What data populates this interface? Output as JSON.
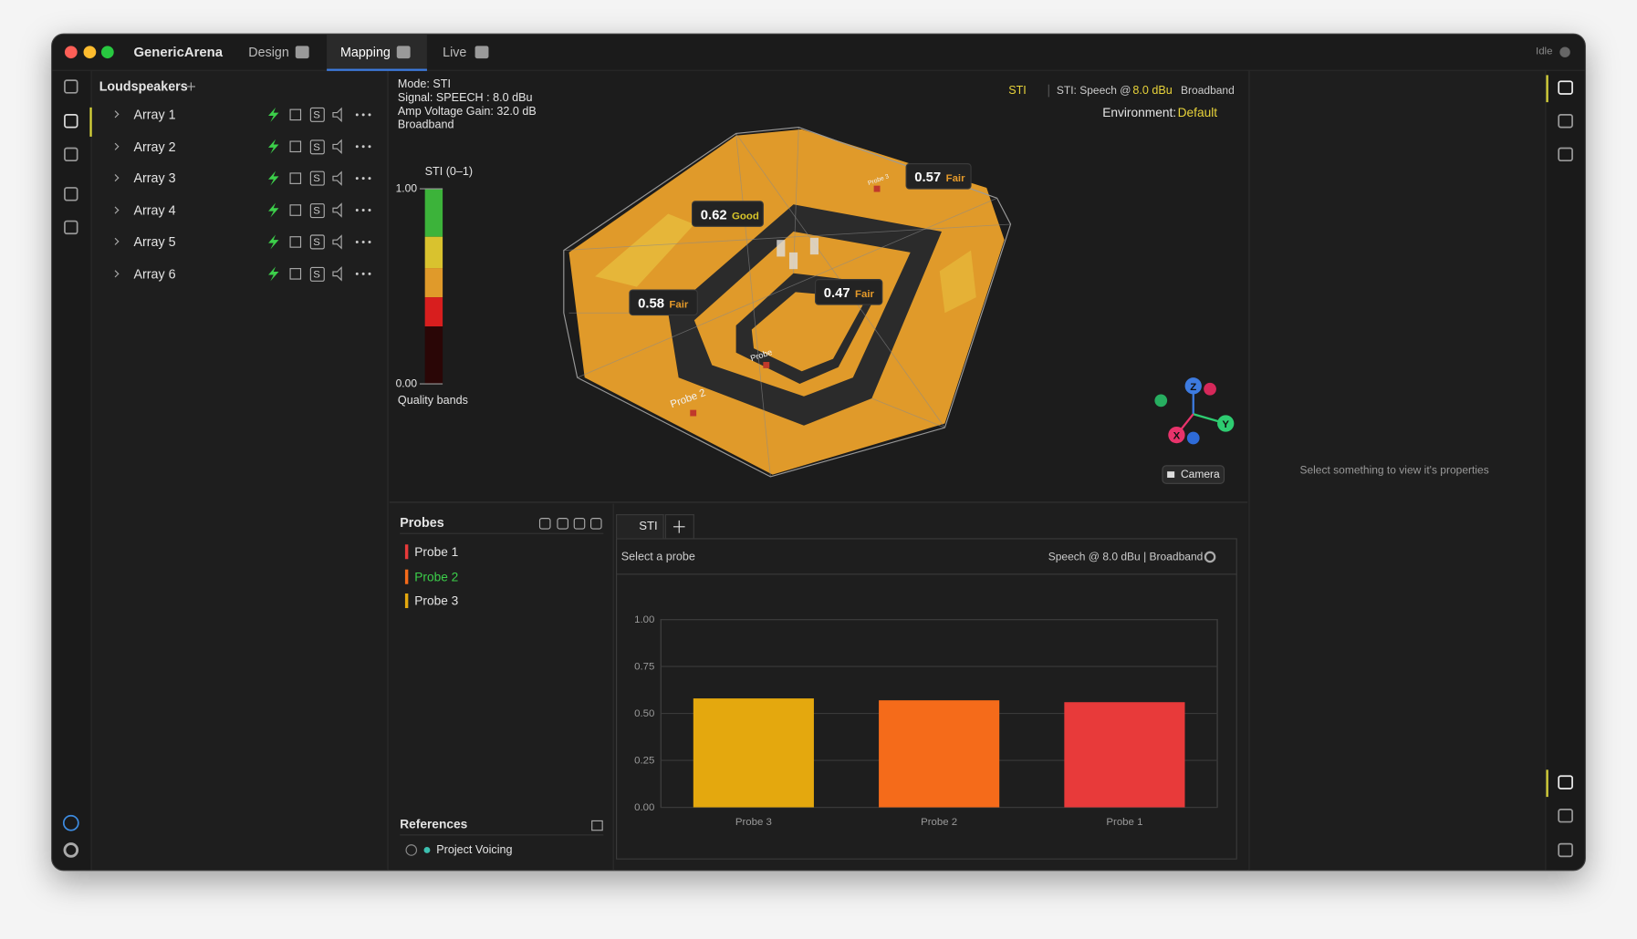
{
  "app": {
    "title": "GenericArena",
    "tabs": [
      "Design",
      "Mapping",
      "Live"
    ],
    "status": "Idle"
  },
  "loudspeakers": {
    "title": "Loudspeakers",
    "items": [
      "Array 1",
      "Array 2",
      "Array 3",
      "Array 4",
      "Array 5",
      "Array 6"
    ],
    "solo": "S"
  },
  "viewport": {
    "info": [
      "Mode: STI",
      "Signal: SPEECH : 8.0 dBu",
      "Amp Voltage Gain: 32.0 dB",
      "Broadband"
    ],
    "metric": "STI",
    "summary_prefix": "STI: Speech @",
    "level": "8.0 dBu",
    "band": "Broadband",
    "environment_label": "Environment:",
    "environment": "Default",
    "legend": {
      "title": "STI (0–1)",
      "max": "1.00",
      "min": "0.00",
      "caption": "Quality bands"
    },
    "callouts": [
      {
        "value": 0.62,
        "rating": "Good"
      },
      {
        "value": 0.57,
        "rating": "Fair"
      },
      {
        "value": 0.58,
        "rating": "Fair"
      },
      {
        "value": 0.47,
        "rating": "Fair"
      }
    ],
    "probe_tags": [
      "Probe 3",
      "Probe",
      "Probe 2"
    ],
    "axes": [
      "Z",
      "Y",
      "X"
    ],
    "camera": "Camera"
  },
  "properties": {
    "empty": "Select something to view it's properties"
  },
  "probes": {
    "title": "Probes",
    "items": [
      {
        "name": "Probe 1",
        "color": "#e83a3a"
      },
      {
        "name": "Probe 2",
        "color": "#f56b1a"
      },
      {
        "name": "Probe 3",
        "color": "#e4a80e"
      }
    ],
    "references_title": "References",
    "references": [
      "Project Voicing"
    ]
  },
  "analysis": {
    "tab": "STI",
    "hint": "Select a probe",
    "settings": "Speech @ 8.0 dBu | Broadband"
  },
  "chart": {
    "type": "bar",
    "categories": [
      "Probe 3",
      "Probe 2",
      "Probe 1"
    ],
    "values": [
      0.58,
      0.57,
      0.56
    ],
    "colors": [
      "#e4a80e",
      "#f56b1a",
      "#e83a3a"
    ],
    "ylim": [
      0,
      1
    ],
    "yticks": [
      {
        "value": 0,
        "label": "0.00"
      },
      {
        "value": 0.25,
        "label": "0.25"
      },
      {
        "value": 0.5,
        "label": "0.50"
      },
      {
        "value": 0.75,
        "label": "0.75"
      },
      {
        "value": 1,
        "label": "1.00"
      }
    ],
    "grid": true
  }
}
